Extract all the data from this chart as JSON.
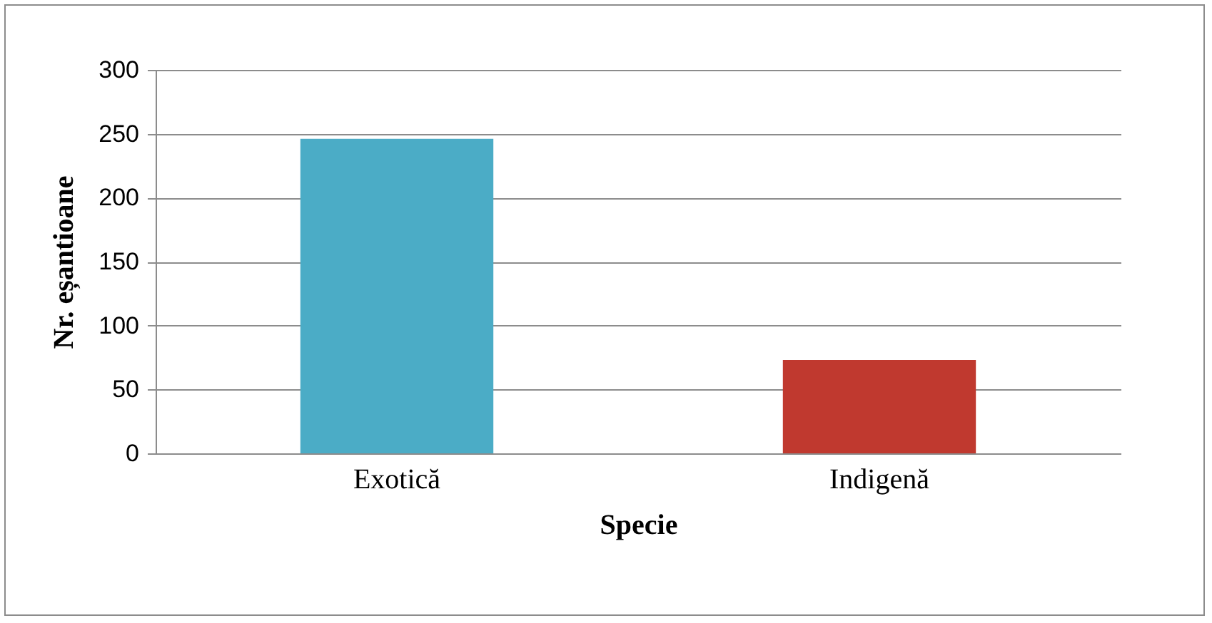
{
  "chart_data": {
    "type": "bar",
    "xlabel": "Specie",
    "ylabel": "Nr. eșantioane",
    "categories": [
      "Exotică",
      "Indigenă"
    ],
    "colors": [
      "#4bacc6",
      "#c0392f"
    ],
    "values": [
      246,
      73
    ],
    "ylim": [
      0,
      300
    ],
    "yticks": [
      0,
      50,
      100,
      150,
      200,
      250,
      300
    ],
    "grid": "y"
  }
}
